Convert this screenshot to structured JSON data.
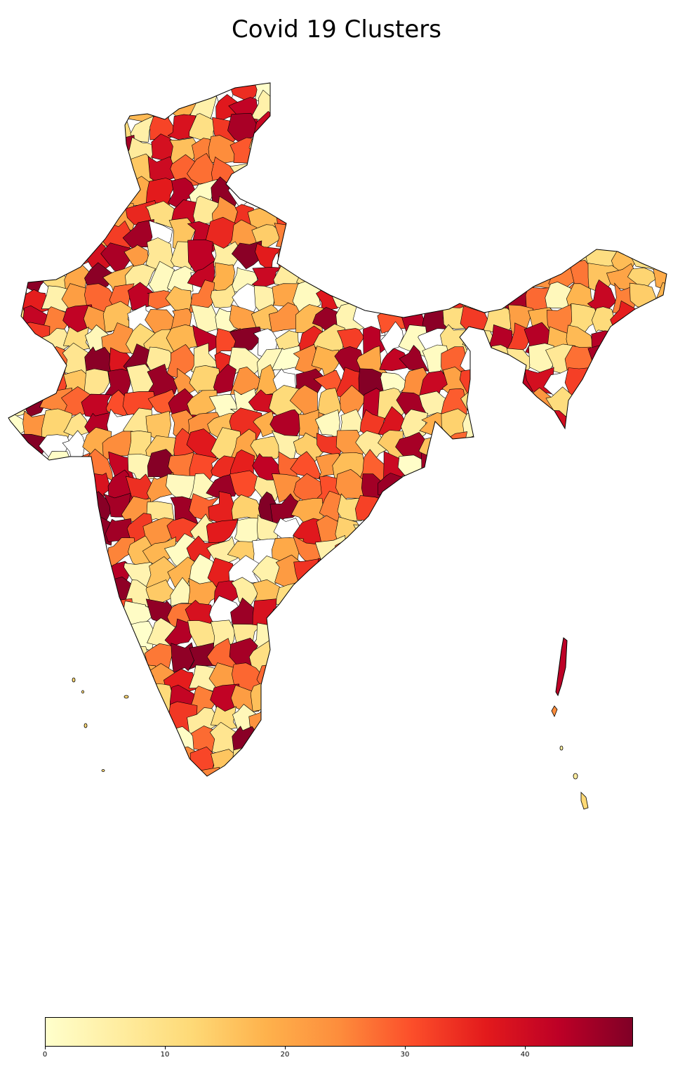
{
  "title": "Covid 19 Clusters",
  "colormap": {
    "name": "YlOrRd",
    "stops": [
      "#ffffcc",
      "#ffeda0",
      "#fed976",
      "#feb24c",
      "#fd8d3c",
      "#fc4e2a",
      "#e31a1c",
      "#bd0026",
      "#800026"
    ],
    "vmin": 0,
    "vmax": 49
  },
  "colorbar": {
    "ticks": [
      0,
      10,
      20,
      30,
      40
    ],
    "tick_labels": [
      "0",
      "10",
      "20",
      "30",
      "40"
    ]
  },
  "map_style": {
    "district_border": "#000000",
    "missing_fill": "#ffffff"
  }
}
